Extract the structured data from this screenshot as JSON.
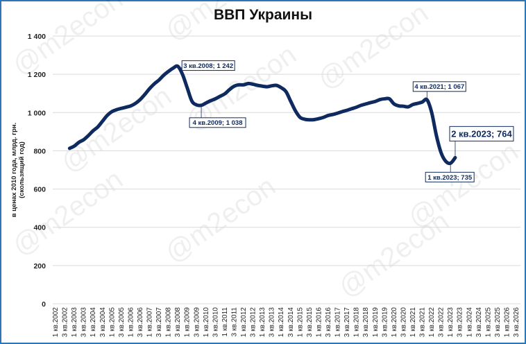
{
  "chart_data": {
    "type": "line",
    "title": "ВВП Украины",
    "ylabel": "в ценах 2010 года, млрд. грн. (скользящий год)",
    "ylabel_lines": [
      "в ценах 2010 года, млрд. грн.",
      "(скользящий год)"
    ],
    "ylim": [
      0,
      1400
    ],
    "yticks": [
      "0",
      "200",
      "400",
      "600",
      "800",
      "1 000",
      "1 200",
      "1 400"
    ],
    "ytick_values": [
      0,
      200,
      400,
      600,
      800,
      1000,
      1200,
      1400
    ],
    "grid": true,
    "xtick_labels": [
      "1 кв.2002",
      "3 кв.2002",
      "1 кв.2003",
      "3 кв.2003",
      "1 кв.2004",
      "3 кв.2004",
      "1 кв.2005",
      "3 кв.2005",
      "1 кв.2006",
      "3 кв.2006",
      "1 кв.2007",
      "3 кв.2007",
      "1 кв.2008",
      "3 кв.2008",
      "1 кв.2009",
      "3 кв.2009",
      "1 кв.2010",
      "3 кв.2010",
      "1 кв.2011",
      "3 кв.2011",
      "1 кв.2012",
      "3 кв.2012",
      "1 кв.2013",
      "3 кв.2013",
      "1 кв.2014",
      "3 кв.2014",
      "1 кв.2015",
      "3 кв.2015",
      "1 кв.2016",
      "3 кв.2016",
      "1 кв.2017",
      "3 кв.2017",
      "1 кв.2018",
      "3 кв.2018",
      "1 кв.2019",
      "3 кв.2019",
      "1 кв.2020",
      "3 кв.2020",
      "1 кв.2021",
      "3 кв.2021",
      "1 кв.2022",
      "3 кв.2022",
      "1 кв.2023",
      "3 кв.2023",
      "1 кв.2024",
      "3 кв.2024",
      "1 кв.2025",
      "3 кв.2025",
      "1 кв.2026",
      "3 кв.2026"
    ],
    "series": [
      {
        "start": "4 кв.2002",
        "color": "#0f2a5f",
        "values": [
          813,
          825,
          845,
          858,
          880,
          905,
          925,
          955,
          985,
          1005,
          1015,
          1022,
          1028,
          1035,
          1048,
          1068,
          1095,
          1125,
          1150,
          1170,
          1195,
          1215,
          1232,
          1242,
          1200,
          1130,
          1060,
          1040,
          1038,
          1050,
          1062,
          1072,
          1085,
          1098,
          1120,
          1138,
          1145,
          1145,
          1152,
          1148,
          1142,
          1138,
          1135,
          1140,
          1142,
          1130,
          1110,
          1060,
          1010,
          975,
          965,
          962,
          963,
          968,
          975,
          985,
          990,
          997,
          1005,
          1012,
          1020,
          1028,
          1038,
          1045,
          1052,
          1058,
          1068,
          1072,
          1072,
          1045,
          1035,
          1033,
          1030,
          1042,
          1048,
          1055,
          1067,
          1000,
          880,
          790,
          745,
          735,
          764
        ]
      }
    ],
    "annotations": [
      {
        "text": "3 кв.2008; 1 242",
        "quarter": "3 кв.2008",
        "value": 1242
      },
      {
        "text": "4 кв.2009; 1 038",
        "quarter": "4 кв.2009",
        "value": 1038
      },
      {
        "text": "4 кв.2021; 1 067",
        "quarter": "4 кв.2021",
        "value": 1067
      },
      {
        "text": "2 кв.2023; 764",
        "quarter": "2 кв.2023",
        "value": 764
      },
      {
        "text": "1 кв.2023; 735",
        "quarter": "1 кв.2023",
        "value": 735
      }
    ]
  },
  "watermark": "@m2econ",
  "colors": {
    "line": "#0f2a5f",
    "frame": "#2e75b6",
    "grid": "#d9d9d9"
  }
}
